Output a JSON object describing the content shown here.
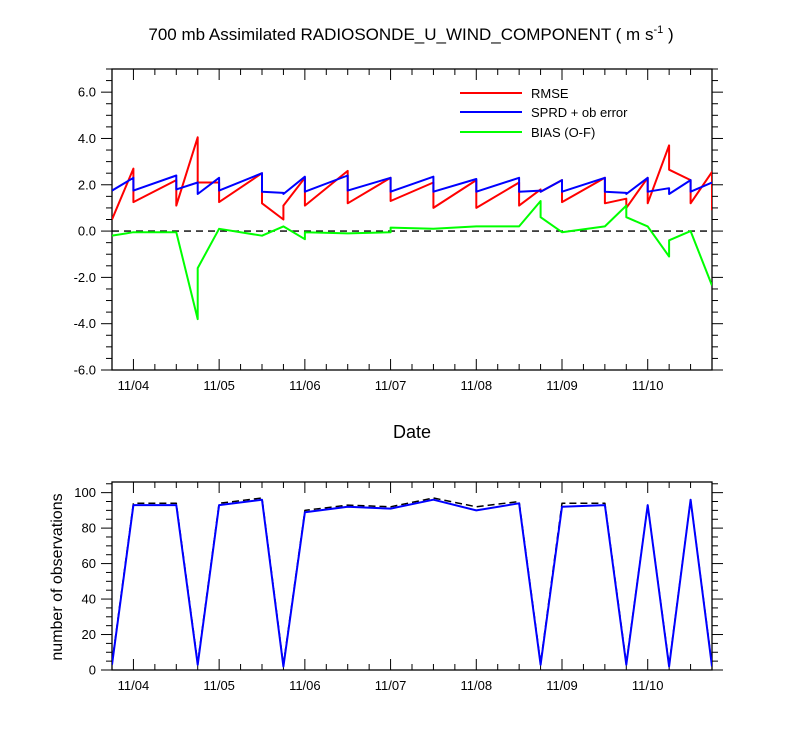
{
  "chart_data": [
    {
      "type": "line",
      "title_main": "700 mb Assimilated RADIOSONDE_U_WIND_COMPONENT ( m s",
      "title_sup": "-1",
      "title_end": " )",
      "xlabel": "Date",
      "ylabel": "",
      "xlim": [
        0,
        7.0
      ],
      "ylim": [
        -6,
        7
      ],
      "x_ticks": [
        0.25,
        1.25,
        2.25,
        3.25,
        4.25,
        5.25,
        6.25
      ],
      "x_tick_labels": [
        "11/04",
        "11/05",
        "11/06",
        "11/07",
        "11/08",
        "11/09",
        "11/10"
      ],
      "y_ticks": [
        -6,
        -4,
        -2,
        0,
        2,
        4,
        6
      ],
      "y_tick_labels": [
        "-6.0",
        "-4.0",
        "-2.0",
        "0.0",
        "2.0",
        "4.0",
        "6.0"
      ],
      "zero_line": true,
      "legend": [
        "RMSE",
        "SPRD + ob error",
        "BIAS (O-F)"
      ],
      "colors": {
        "RMSE": "#ff0000",
        "SPRD": "#0000ff",
        "BIAS": "#00ff00",
        "zero": "#000000"
      },
      "series": [
        {
          "name": "RMSE",
          "segments": [
            [
              [
                0,
                0.5
              ],
              [
                0.25,
                2.7
              ],
              [
                0.25,
                1.25
              ],
              [
                0.75,
                2.2
              ],
              [
                0.75,
                1.1
              ],
              [
                1.0,
                4.05
              ],
              [
                1.0,
                2.1
              ],
              [
                1.25,
                2.1
              ],
              [
                1.25,
                1.25
              ],
              [
                1.75,
                2.5
              ],
              [
                1.75,
                1.2
              ],
              [
                2.0,
                0.5
              ],
              [
                2.0,
                1.1
              ],
              [
                2.25,
                2.3
              ],
              [
                2.25,
                1.1
              ],
              [
                2.75,
                2.6
              ],
              [
                2.75,
                1.2
              ],
              [
                3.25,
                2.3
              ],
              [
                3.25,
                1.3
              ],
              [
                3.75,
                2.1
              ],
              [
                3.75,
                1.0
              ],
              [
                4.25,
                2.2
              ],
              [
                4.25,
                1.0
              ],
              [
                4.75,
                2.1
              ],
              [
                4.75,
                1.1
              ],
              [
                5.0,
                1.8
              ],
              [
                5.0,
                1.7
              ],
              [
                5.25,
                2.2
              ],
              [
                5.25,
                1.25
              ],
              [
                5.75,
                2.3
              ],
              [
                5.75,
                1.2
              ],
              [
                6.0,
                1.4
              ],
              [
                6.0,
                1.0
              ],
              [
                6.25,
                2.3
              ],
              [
                6.25,
                1.2
              ],
              [
                6.5,
                3.7
              ],
              [
                6.5,
                2.65
              ],
              [
                6.75,
                2.2
              ],
              [
                6.75,
                1.2
              ],
              [
                7.0,
                2.55
              ],
              [
                7.0,
                0.9
              ]
            ]
          ]
        },
        {
          "name": "SPRD + ob error",
          "segments": [
            [
              [
                0,
                1.75
              ],
              [
                0.25,
                2.3
              ],
              [
                0.25,
                1.75
              ],
              [
                0.75,
                2.4
              ],
              [
                0.75,
                1.8
              ],
              [
                1.0,
                2.1
              ],
              [
                1.0,
                1.6
              ],
              [
                1.25,
                2.3
              ],
              [
                1.25,
                1.75
              ],
              [
                1.75,
                2.5
              ],
              [
                1.75,
                1.7
              ],
              [
                2.0,
                1.65
              ],
              [
                2.0,
                1.6
              ],
              [
                2.25,
                2.35
              ],
              [
                2.25,
                1.7
              ],
              [
                2.75,
                2.4
              ],
              [
                2.75,
                1.75
              ],
              [
                3.25,
                2.3
              ],
              [
                3.25,
                1.7
              ],
              [
                3.75,
                2.35
              ],
              [
                3.75,
                1.7
              ],
              [
                4.25,
                2.25
              ],
              [
                4.25,
                1.7
              ],
              [
                4.75,
                2.3
              ],
              [
                4.75,
                1.7
              ],
              [
                5.0,
                1.75
              ],
              [
                5.0,
                1.7
              ],
              [
                5.25,
                2.2
              ],
              [
                5.25,
                1.7
              ],
              [
                5.75,
                2.3
              ],
              [
                5.75,
                1.7
              ],
              [
                6.0,
                1.65
              ],
              [
                6.0,
                1.6
              ],
              [
                6.25,
                2.3
              ],
              [
                6.25,
                1.7
              ],
              [
                6.5,
                1.85
              ],
              [
                6.5,
                1.6
              ],
              [
                6.75,
                2.2
              ],
              [
                6.75,
                1.7
              ],
              [
                7.0,
                2.1
              ]
            ]
          ]
        },
        {
          "name": "BIAS (O-F)",
          "segments": [
            [
              [
                0,
                -0.2
              ],
              [
                0.25,
                -0.05
              ],
              [
                0.75,
                -0.05
              ],
              [
                1.0,
                -3.8
              ],
              [
                1.0,
                -1.6
              ],
              [
                1.25,
                0.1
              ],
              [
                1.75,
                -0.2
              ],
              [
                2.0,
                0.2
              ],
              [
                2.25,
                -0.35
              ],
              [
                2.25,
                -0.05
              ],
              [
                2.75,
                -0.1
              ],
              [
                3.25,
                -0.05
              ],
              [
                3.25,
                0.15
              ],
              [
                3.75,
                0.1
              ],
              [
                4.25,
                0.2
              ],
              [
                4.75,
                0.2
              ],
              [
                5.0,
                1.3
              ],
              [
                5.0,
                0.6
              ],
              [
                5.25,
                -0.05
              ],
              [
                5.75,
                0.2
              ],
              [
                6.0,
                1.1
              ],
              [
                6.0,
                0.6
              ],
              [
                6.25,
                0.2
              ],
              [
                6.5,
                -1.1
              ],
              [
                6.5,
                -0.4
              ],
              [
                6.75,
                0.0
              ],
              [
                7.0,
                -2.35
              ]
            ]
          ]
        }
      ]
    },
    {
      "type": "line",
      "ylabel": "number of observations",
      "xlim": [
        0,
        7.0
      ],
      "ylim": [
        0,
        106
      ],
      "x_ticks": [
        0.25,
        1.25,
        2.25,
        3.25,
        4.25,
        5.25,
        6.25
      ],
      "x_tick_labels": [
        "11/04",
        "11/05",
        "11/06",
        "11/07",
        "11/08",
        "11/09",
        "11/10"
      ],
      "y_ticks": [
        0,
        20,
        40,
        60,
        80,
        100
      ],
      "y_tick_labels": [
        "0",
        "20",
        "40",
        "60",
        "80",
        "100"
      ],
      "colors": {
        "possible": "#000000",
        "used": "#0000ff"
      },
      "series": [
        {
          "name": "possible",
          "style": "dashed",
          "x": [
            0,
            0.25,
            0.75,
            1.0,
            1.25,
            1.75,
            2.0,
            2.25,
            2.75,
            3.25,
            3.75,
            4.25,
            4.75,
            5.0,
            5.25,
            5.75,
            6.0,
            6.25,
            6.5,
            6.75,
            7.0
          ],
          "y": [
            4,
            94,
            94,
            4,
            94,
            97,
            3,
            90,
            93,
            92,
            97,
            92,
            95,
            4,
            94,
            94,
            4,
            93,
            3,
            96,
            3
          ]
        },
        {
          "name": "used",
          "style": "solid",
          "x": [
            0,
            0.25,
            0.75,
            1.0,
            1.25,
            1.75,
            2.0,
            2.25,
            2.75,
            3.25,
            3.75,
            4.25,
            4.75,
            5.0,
            5.25,
            5.75,
            6.0,
            6.25,
            6.5,
            6.75,
            7.0
          ],
          "y": [
            3,
            93,
            93,
            3,
            93,
            96,
            2,
            89,
            92,
            91,
            96,
            90,
            94,
            3,
            92,
            93,
            3,
            93,
            2,
            96,
            2
          ]
        }
      ]
    }
  ]
}
